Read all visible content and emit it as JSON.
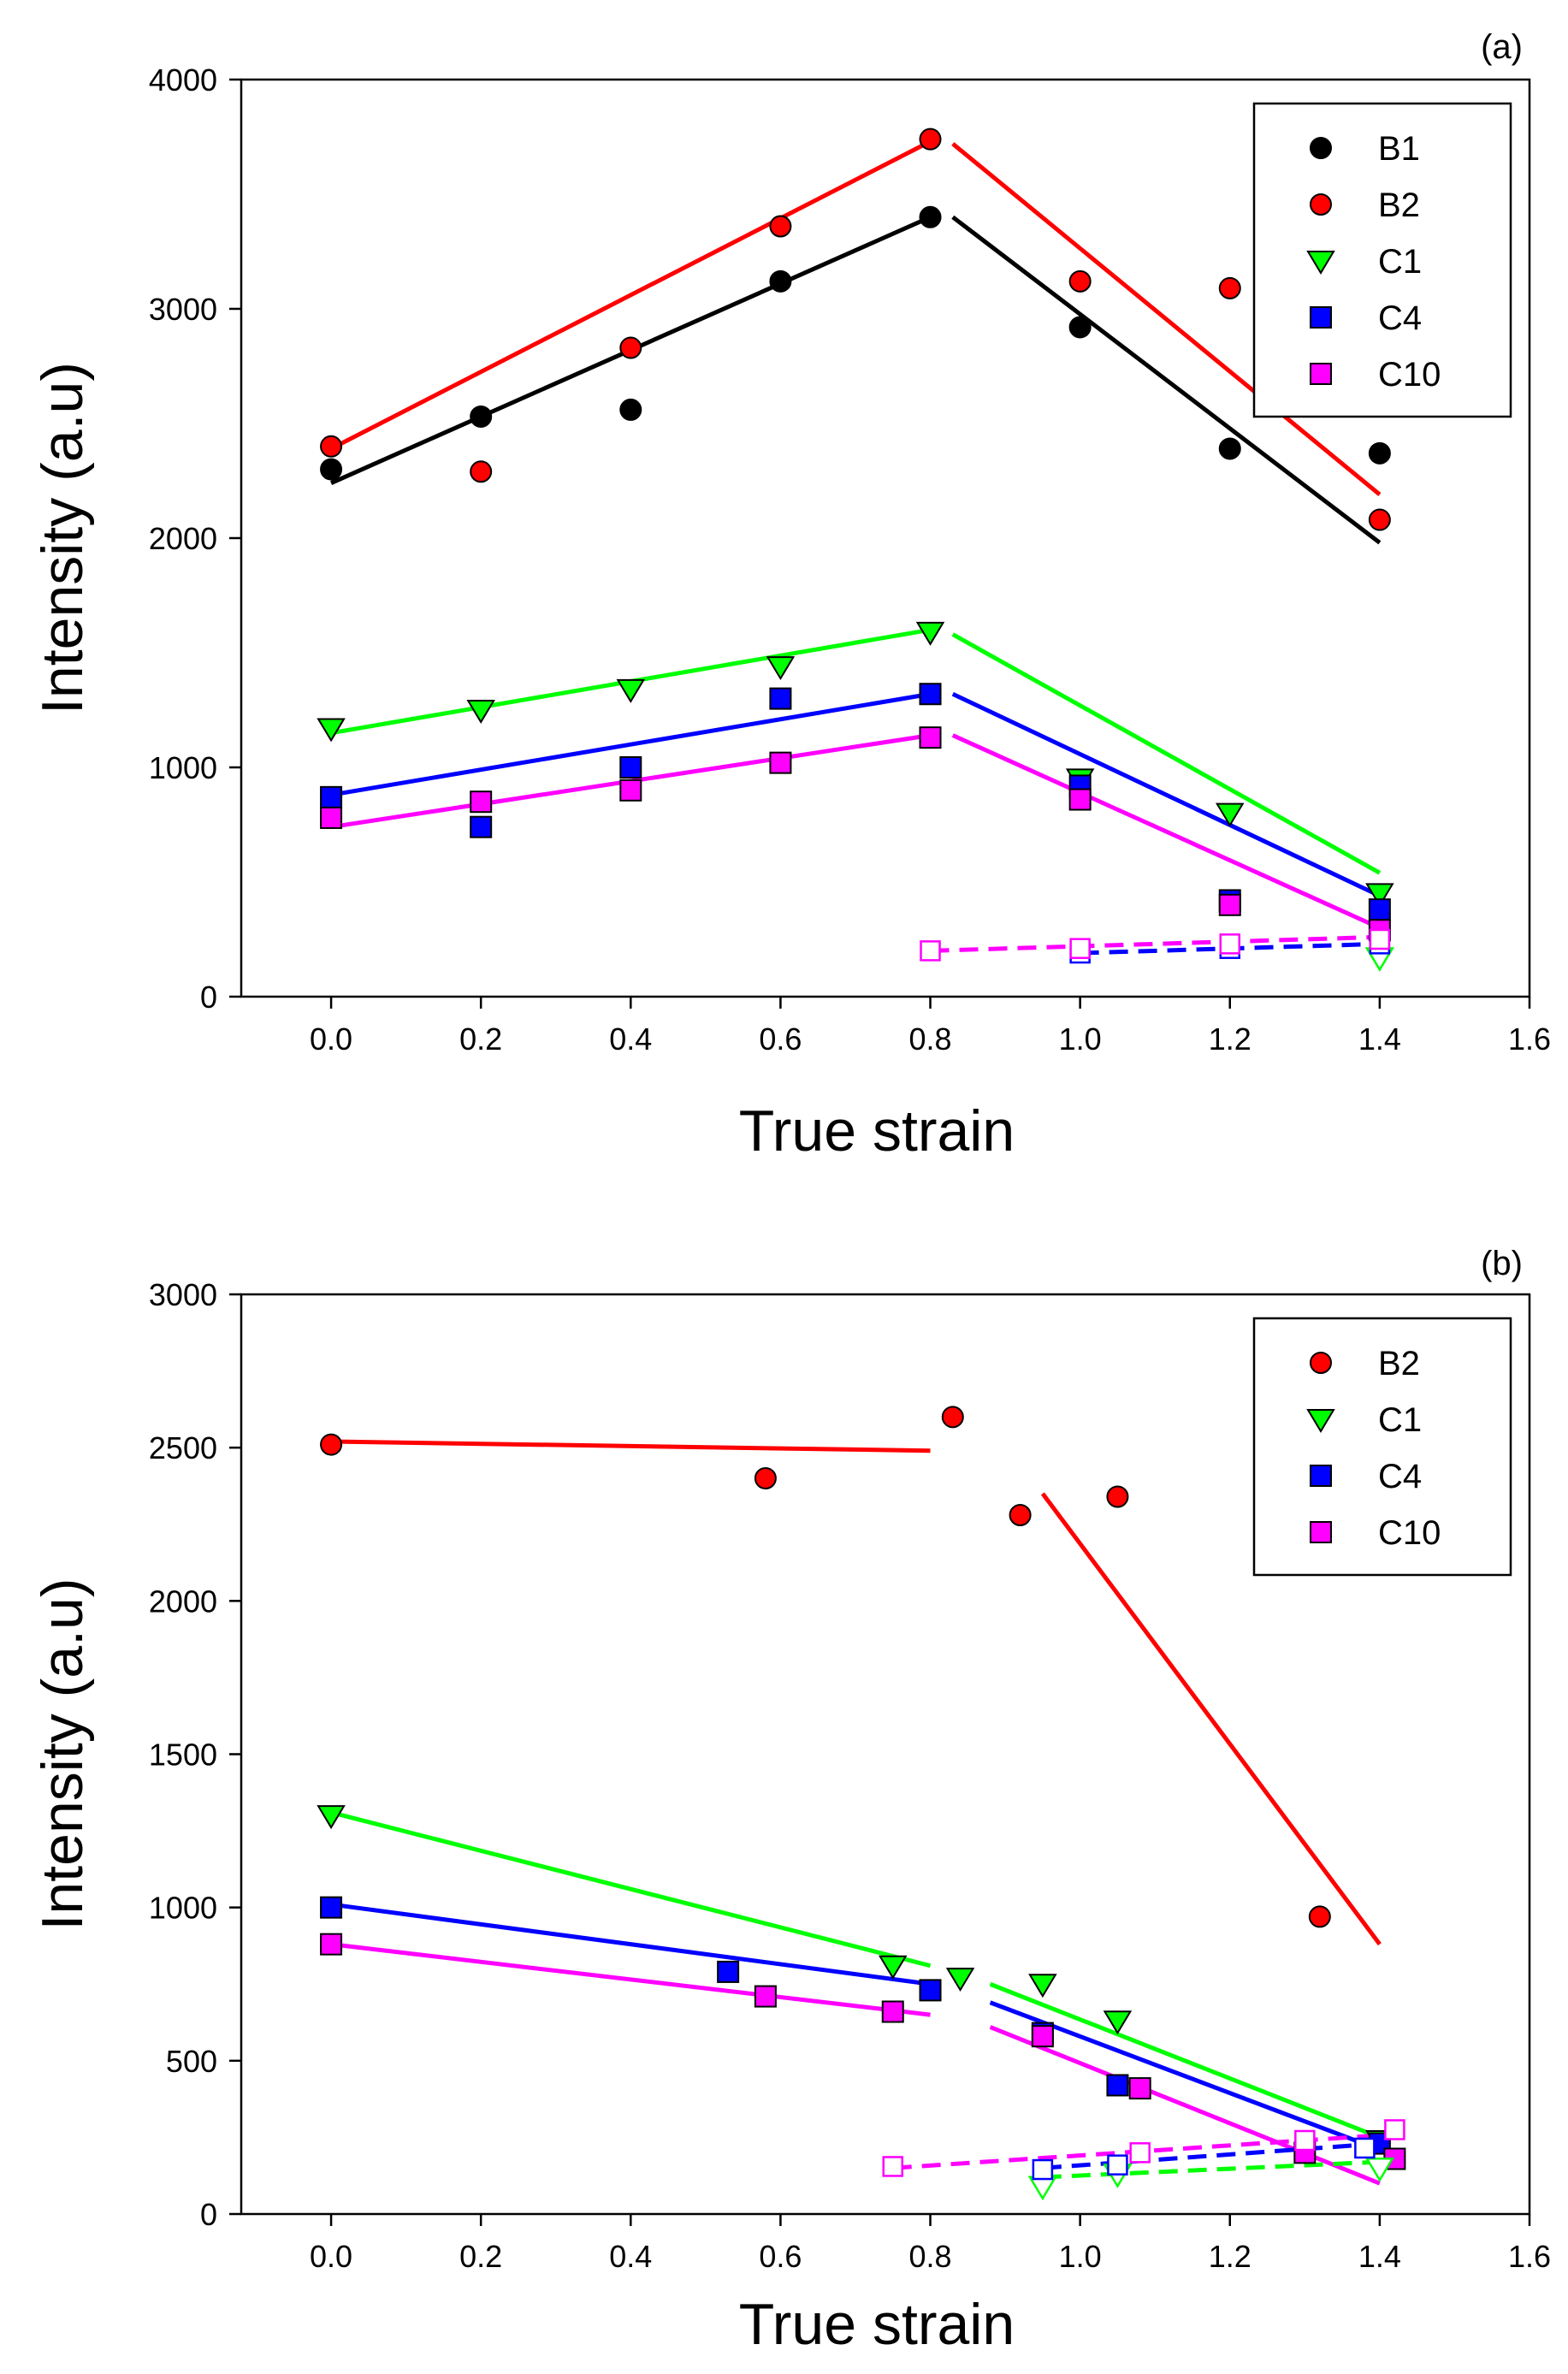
{
  "colors": {
    "B1": "#000000",
    "B2": "#ff0000",
    "C1": "#00ff00",
    "C4": "#0000ff",
    "C10": "#ff00ff"
  },
  "chart_data": [
    {
      "type": "scatter",
      "panel_label": "(a)",
      "xlabel": "True strain",
      "ylabel": "Intensity (a.u)",
      "xlim": [
        -0.12,
        1.6
      ],
      "ylim": [
        0,
        4000
      ],
      "xticks": [
        0.0,
        0.2,
        0.4,
        0.6,
        0.8,
        1.0,
        1.2,
        1.4,
        1.6
      ],
      "xtick_labels": [
        "0.0",
        "0.2",
        "0.4",
        "0.6",
        "0.8",
        "1.0",
        "1.2",
        "1.4",
        "1.6"
      ],
      "yticks": [
        0,
        1000,
        2000,
        3000,
        4000
      ],
      "ytick_labels": [
        "0",
        "1000",
        "2000",
        "3000",
        "4000"
      ],
      "legend": [
        "B1",
        "B2",
        "C1",
        "C4",
        "C10"
      ],
      "legend_position": "top-right",
      "series": [
        {
          "name": "B1",
          "marker": "circle",
          "color": "#000000",
          "points": [
            [
              0.0,
              2300
            ],
            [
              0.2,
              2530
            ],
            [
              0.4,
              2560
            ],
            [
              0.6,
              3120
            ],
            [
              0.8,
              3400
            ],
            [
              1.0,
              2920
            ],
            [
              1.2,
              2390
            ],
            [
              1.4,
              2370
            ]
          ]
        },
        {
          "name": "B2",
          "marker": "circle",
          "color": "#ff0000",
          "points": [
            [
              0.0,
              2400
            ],
            [
              0.2,
              2290
            ],
            [
              0.4,
              2830
            ],
            [
              0.6,
              3360
            ],
            [
              0.8,
              3740
            ],
            [
              1.0,
              3120
            ],
            [
              1.2,
              3090
            ],
            [
              1.4,
              2080
            ]
          ]
        },
        {
          "name": "C1",
          "marker": "triangle-down",
          "color": "#00ff00",
          "points": [
            [
              0.0,
              1170
            ],
            [
              0.2,
              1250
            ],
            [
              0.4,
              1340
            ],
            [
              0.6,
              1440
            ],
            [
              0.8,
              1590
            ],
            [
              1.0,
              950
            ],
            [
              1.2,
              800
            ],
            [
              1.4,
              450
            ]
          ]
        },
        {
          "name": "C4",
          "marker": "square",
          "color": "#0000ff",
          "points": [
            [
              0.0,
              870
            ],
            [
              0.2,
              740
            ],
            [
              0.4,
              1000
            ],
            [
              0.6,
              1300
            ],
            [
              0.8,
              1320
            ],
            [
              1.0,
              920
            ],
            [
              1.2,
              420
            ],
            [
              1.4,
              380
            ]
          ]
        },
        {
          "name": "C10",
          "marker": "square",
          "color": "#ff00ff",
          "points": [
            [
              0.0,
              780
            ],
            [
              0.2,
              850
            ],
            [
              0.4,
              900
            ],
            [
              0.6,
              1020
            ],
            [
              0.8,
              1130
            ],
            [
              1.0,
              860
            ],
            [
              1.2,
              400
            ],
            [
              1.4,
              290
            ]
          ]
        },
        {
          "name": "C1-open",
          "marker": "triangle-down-open",
          "color": "#00ff00",
          "legend": false,
          "points": [
            [
              1.4,
              170
            ]
          ]
        },
        {
          "name": "C4-open",
          "marker": "square-open",
          "color": "#0000ff",
          "legend": false,
          "points": [
            [
              1.0,
              190
            ],
            [
              1.2,
              210
            ],
            [
              1.4,
              230
            ]
          ]
        },
        {
          "name": "C10-open",
          "marker": "square-open",
          "color": "#ff00ff",
          "legend": false,
          "points": [
            [
              0.8,
              200
            ],
            [
              1.0,
              210
            ],
            [
              1.2,
              230
            ],
            [
              1.4,
              250
            ]
          ]
        }
      ],
      "fit_lines": [
        {
          "series": "B2",
          "color": "#ff0000",
          "dash": false,
          "from": [
            0.0,
            2390
          ],
          "to": [
            0.8,
            3730
          ]
        },
        {
          "series": "B2",
          "color": "#ff0000",
          "dash": false,
          "from": [
            0.83,
            3720
          ],
          "to": [
            1.4,
            2190
          ]
        },
        {
          "series": "B1",
          "color": "#000000",
          "dash": false,
          "from": [
            0.0,
            2240
          ],
          "to": [
            0.8,
            3400
          ]
        },
        {
          "series": "B1",
          "color": "#000000",
          "dash": false,
          "from": [
            0.83,
            3400
          ],
          "to": [
            1.4,
            1980
          ]
        },
        {
          "series": "C1",
          "color": "#00ff00",
          "dash": false,
          "from": [
            0.0,
            1150
          ],
          "to": [
            0.8,
            1600
          ]
        },
        {
          "series": "C1",
          "color": "#00ff00",
          "dash": false,
          "from": [
            0.83,
            1580
          ],
          "to": [
            1.4,
            540
          ]
        },
        {
          "series": "C4",
          "color": "#0000ff",
          "dash": false,
          "from": [
            0.0,
            880
          ],
          "to": [
            0.8,
            1320
          ]
        },
        {
          "series": "C4",
          "color": "#0000ff",
          "dash": false,
          "from": [
            0.83,
            1320
          ],
          "to": [
            1.4,
            440
          ]
        },
        {
          "series": "C10",
          "color": "#ff00ff",
          "dash": false,
          "from": [
            0.0,
            740
          ],
          "to": [
            0.8,
            1140
          ]
        },
        {
          "series": "C10",
          "color": "#ff00ff",
          "dash": false,
          "from": [
            0.83,
            1140
          ],
          "to": [
            1.4,
            300
          ]
        },
        {
          "series": "C10-open",
          "color": "#ff00ff",
          "dash": true,
          "from": [
            0.8,
            200
          ],
          "to": [
            1.4,
            260
          ]
        },
        {
          "series": "C4-open",
          "color": "#0000ff",
          "dash": true,
          "from": [
            1.0,
            190
          ],
          "to": [
            1.4,
            230
          ]
        }
      ]
    },
    {
      "type": "scatter",
      "panel_label": "(b)",
      "xlabel": "True strain",
      "ylabel": "Intensity (a.u)",
      "xlim": [
        -0.12,
        1.6
      ],
      "ylim": [
        0,
        3000
      ],
      "xticks": [
        0.0,
        0.2,
        0.4,
        0.6,
        0.8,
        1.0,
        1.2,
        1.4,
        1.6
      ],
      "xtick_labels": [
        "0.0",
        "0.2",
        "0.4",
        "0.6",
        "0.8",
        "1.0",
        "1.2",
        "1.4",
        "1.6"
      ],
      "yticks": [
        0,
        500,
        1000,
        1500,
        2000,
        2500,
        3000
      ],
      "ytick_labels": [
        "0",
        "500",
        "1000",
        "1500",
        "2000",
        "2500",
        "3000"
      ],
      "legend": [
        "B2",
        "C1",
        "C4",
        "C10"
      ],
      "legend_position": "top-right",
      "series": [
        {
          "name": "B2",
          "marker": "circle",
          "color": "#ff0000",
          "points": [
            [
              0.0,
              2510
            ],
            [
              0.58,
              2400
            ],
            [
              0.83,
              2600
            ],
            [
              0.92,
              2280
            ],
            [
              1.05,
              2340
            ],
            [
              1.32,
              970
            ]
          ]
        },
        {
          "name": "C1",
          "marker": "triangle-down",
          "color": "#00ff00",
          "points": [
            [
              0.0,
              1300
            ],
            [
              0.75,
              810
            ],
            [
              0.84,
              770
            ],
            [
              0.95,
              750
            ],
            [
              1.05,
              630
            ],
            [
              1.4,
              240
            ]
          ]
        },
        {
          "name": "C4",
          "marker": "square",
          "color": "#0000ff",
          "points": [
            [
              0.0,
              1000
            ],
            [
              0.53,
              790
            ],
            [
              0.8,
              730
            ],
            [
              0.95,
              590
            ],
            [
              1.05,
              420
            ],
            [
              1.4,
              230
            ]
          ]
        },
        {
          "name": "C10",
          "marker": "square",
          "color": "#ff00ff",
          "points": [
            [
              0.0,
              880
            ],
            [
              0.58,
              710
            ],
            [
              0.75,
              660
            ],
            [
              0.95,
              580
            ],
            [
              1.08,
              410
            ],
            [
              1.3,
              200
            ],
            [
              1.42,
              180
            ]
          ]
        },
        {
          "name": "C1-open",
          "marker": "triangle-down-open",
          "color": "#00ff00",
          "legend": false,
          "points": [
            [
              0.95,
              90
            ],
            [
              1.05,
              130
            ],
            [
              1.4,
              150
            ]
          ]
        },
        {
          "name": "C4-open",
          "marker": "square-open",
          "color": "#0000ff",
          "legend": false,
          "points": [
            [
              0.95,
              145
            ],
            [
              1.05,
              160
            ],
            [
              1.38,
              215
            ]
          ]
        },
        {
          "name": "C10-open",
          "marker": "square-open",
          "color": "#ff00ff",
          "legend": false,
          "points": [
            [
              0.75,
              155
            ],
            [
              1.08,
              200
            ],
            [
              1.3,
              240
            ],
            [
              1.42,
              275
            ]
          ]
        }
      ],
      "fit_lines": [
        {
          "series": "B2",
          "color": "#ff0000",
          "dash": false,
          "from": [
            0.0,
            2520
          ],
          "to": [
            0.8,
            2490
          ]
        },
        {
          "series": "B2",
          "color": "#ff0000",
          "dash": false,
          "from": [
            0.95,
            2350
          ],
          "to": [
            1.4,
            880
          ]
        },
        {
          "series": "C1",
          "color": "#00ff00",
          "dash": false,
          "from": [
            0.0,
            1310
          ],
          "to": [
            0.8,
            810
          ]
        },
        {
          "series": "C1",
          "color": "#00ff00",
          "dash": false,
          "from": [
            0.88,
            750
          ],
          "to": [
            1.4,
            250
          ]
        },
        {
          "series": "C4",
          "color": "#0000ff",
          "dash": false,
          "from": [
            0.0,
            1010
          ],
          "to": [
            0.8,
            750
          ]
        },
        {
          "series": "C4",
          "color": "#0000ff",
          "dash": false,
          "from": [
            0.88,
            690
          ],
          "to": [
            1.4,
            210
          ]
        },
        {
          "series": "C10",
          "color": "#ff00ff",
          "dash": false,
          "from": [
            0.0,
            880
          ],
          "to": [
            0.8,
            650
          ]
        },
        {
          "series": "C10",
          "color": "#ff00ff",
          "dash": false,
          "from": [
            0.88,
            610
          ],
          "to": [
            1.4,
            100
          ]
        },
        {
          "series": "C10-open",
          "color": "#ff00ff",
          "dash": true,
          "from": [
            0.75,
            150
          ],
          "to": [
            1.42,
            260
          ]
        },
        {
          "series": "C4-open",
          "color": "#0000ff",
          "dash": true,
          "from": [
            0.95,
            150
          ],
          "to": [
            1.4,
            230
          ]
        },
        {
          "series": "C1-open",
          "color": "#00ff00",
          "dash": true,
          "from": [
            0.95,
            120
          ],
          "to": [
            1.4,
            170
          ]
        }
      ]
    }
  ]
}
